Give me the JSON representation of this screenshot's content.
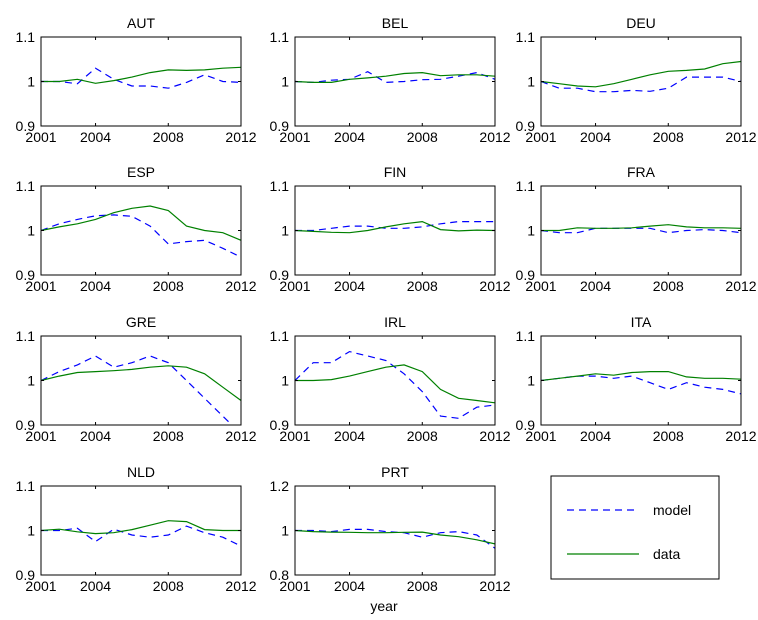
{
  "figure": {
    "xlabel": "year",
    "legend": {
      "position": "bottom-right",
      "entries": [
        {
          "label": "model",
          "style": "dashed",
          "color": "#0000ff"
        },
        {
          "label": "data",
          "style": "solid",
          "color": "#008000"
        }
      ]
    },
    "colors": {
      "model": "#0000ff",
      "data": "#008000",
      "axes": "#000000"
    }
  },
  "chart_data": [
    {
      "type": "line",
      "title": "AUT",
      "xlim": [
        2001,
        2012
      ],
      "ylim": [
        0.9,
        1.1
      ],
      "xticks": [
        "2001",
        "2004",
        "2008",
        "2012"
      ],
      "yticks": [
        "0.9",
        "1",
        "1.1"
      ],
      "x": [
        2001,
        2002,
        2003,
        2004,
        2005,
        2006,
        2007,
        2008,
        2009,
        2010,
        2011,
        2012
      ],
      "series": [
        {
          "name": "model",
          "values": [
            1.0,
            1.0,
            0.995,
            1.03,
            1.005,
            0.99,
            0.99,
            0.985,
            0.998,
            1.015,
            1.0,
            0.998
          ]
        },
        {
          "name": "data",
          "values": [
            1.0,
            1.0,
            1.005,
            0.996,
            1.002,
            1.01,
            1.02,
            1.026,
            1.025,
            1.026,
            1.03,
            1.032
          ]
        }
      ]
    },
    {
      "type": "line",
      "title": "BEL",
      "xlim": [
        2001,
        2012
      ],
      "ylim": [
        0.9,
        1.1
      ],
      "xticks": [
        "2001",
        "2004",
        "2008",
        "2012"
      ],
      "yticks": [
        "0.9",
        "1",
        "1.1"
      ],
      "x": [
        2001,
        2002,
        2003,
        2004,
        2005,
        2006,
        2007,
        2008,
        2009,
        2010,
        2011,
        2012
      ],
      "series": [
        {
          "name": "model",
          "values": [
            1.0,
            0.998,
            1.003,
            1.005,
            1.022,
            0.998,
            1.0,
            1.004,
            1.005,
            1.012,
            1.02,
            1.005
          ]
        },
        {
          "name": "data",
          "values": [
            1.0,
            0.998,
            0.998,
            1.005,
            1.008,
            1.012,
            1.018,
            1.02,
            1.013,
            1.015,
            1.015,
            1.012
          ]
        }
      ]
    },
    {
      "type": "line",
      "title": "DEU",
      "xlim": [
        2001,
        2012
      ],
      "ylim": [
        0.9,
        1.1
      ],
      "xticks": [
        "2001",
        "2004",
        "2008",
        "2012"
      ],
      "yticks": [
        "0.9",
        "1",
        "1.1"
      ],
      "x": [
        2001,
        2002,
        2003,
        2004,
        2005,
        2006,
        2007,
        2008,
        2009,
        2010,
        2011,
        2012
      ],
      "series": [
        {
          "name": "model",
          "values": [
            1.0,
            0.985,
            0.985,
            0.977,
            0.977,
            0.98,
            0.978,
            0.985,
            1.01,
            1.01,
            1.01,
            1.0
          ]
        },
        {
          "name": "data",
          "values": [
            1.0,
            0.995,
            0.99,
            0.988,
            0.995,
            1.005,
            1.015,
            1.023,
            1.025,
            1.028,
            1.04,
            1.045
          ]
        }
      ]
    },
    {
      "type": "line",
      "title": "ESP",
      "xlim": [
        2001,
        2012
      ],
      "ylim": [
        0.9,
        1.1
      ],
      "xticks": [
        "2001",
        "2004",
        "2008",
        "2012"
      ],
      "yticks": [
        "0.9",
        "1",
        "1.1"
      ],
      "x": [
        2001,
        2002,
        2003,
        2004,
        2005,
        2006,
        2007,
        2008,
        2009,
        2010,
        2011,
        2012
      ],
      "series": [
        {
          "name": "model",
          "values": [
            1.0,
            1.015,
            1.025,
            1.033,
            1.035,
            1.032,
            1.01,
            0.97,
            0.975,
            0.978,
            0.96,
            0.94
          ]
        },
        {
          "name": "data",
          "values": [
            1.0,
            1.008,
            1.015,
            1.025,
            1.04,
            1.05,
            1.055,
            1.045,
            1.01,
            1.0,
            0.995,
            0.978
          ]
        }
      ]
    },
    {
      "type": "line",
      "title": "FIN",
      "xlim": [
        2001,
        2012
      ],
      "ylim": [
        0.9,
        1.1
      ],
      "xticks": [
        "2001",
        "2004",
        "2008",
        "2012"
      ],
      "yticks": [
        "0.9",
        "1",
        "1.1"
      ],
      "x": [
        2001,
        2002,
        2003,
        2004,
        2005,
        2006,
        2007,
        2008,
        2009,
        2010,
        2011,
        2012
      ],
      "series": [
        {
          "name": "model",
          "values": [
            1.0,
            1.0,
            1.005,
            1.01,
            1.01,
            1.005,
            1.005,
            1.008,
            1.015,
            1.02,
            1.02,
            1.02
          ]
        },
        {
          "name": "data",
          "values": [
            1.0,
            0.998,
            0.996,
            0.995,
            1.0,
            1.008,
            1.015,
            1.02,
            1.002,
            0.999,
            1.001,
            1.0
          ]
        }
      ]
    },
    {
      "type": "line",
      "title": "FRA",
      "xlim": [
        2001,
        2012
      ],
      "ylim": [
        0.9,
        1.1
      ],
      "xticks": [
        "2001",
        "2004",
        "2008",
        "2012"
      ],
      "yticks": [
        "0.9",
        "1",
        "1.1"
      ],
      "x": [
        2001,
        2002,
        2003,
        2004,
        2005,
        2006,
        2007,
        2008,
        2009,
        2010,
        2011,
        2012
      ],
      "series": [
        {
          "name": "model",
          "values": [
            1.0,
            0.995,
            0.995,
            1.005,
            1.005,
            1.005,
            1.005,
            0.995,
            1.0,
            1.002,
            1.0,
            0.995
          ]
        },
        {
          "name": "data",
          "values": [
            1.0,
            1.0,
            1.006,
            1.005,
            1.005,
            1.006,
            1.01,
            1.013,
            1.008,
            1.006,
            1.006,
            1.005
          ]
        }
      ]
    },
    {
      "type": "line",
      "title": "GRE",
      "xlim": [
        2001,
        2012
      ],
      "ylim": [
        0.9,
        1.1
      ],
      "xticks": [
        "2001",
        "2004",
        "2008",
        "2012"
      ],
      "yticks": [
        "0.9",
        "1",
        "1.1"
      ],
      "x": [
        2001,
        2002,
        2003,
        2004,
        2005,
        2006,
        2007,
        2008,
        2009,
        2010,
        2011,
        2012
      ],
      "series": [
        {
          "name": "model",
          "values": [
            1.0,
            1.02,
            1.035,
            1.055,
            1.03,
            1.04,
            1.055,
            1.04,
            1.0,
            0.96,
            0.92,
            0.88
          ]
        },
        {
          "name": "data",
          "values": [
            1.0,
            1.01,
            1.018,
            1.02,
            1.022,
            1.025,
            1.03,
            1.033,
            1.03,
            1.015,
            0.985,
            0.955
          ]
        }
      ]
    },
    {
      "type": "line",
      "title": "IRL",
      "xlim": [
        2001,
        2012
      ],
      "ylim": [
        0.9,
        1.1
      ],
      "xticks": [
        "2001",
        "2004",
        "2008",
        "2012"
      ],
      "yticks": [
        "0.9",
        "1",
        "1.1"
      ],
      "x": [
        2001,
        2002,
        2003,
        2004,
        2005,
        2006,
        2007,
        2008,
        2009,
        2010,
        2011,
        2012
      ],
      "series": [
        {
          "name": "model",
          "values": [
            1.0,
            1.04,
            1.04,
            1.065,
            1.055,
            1.045,
            1.015,
            0.975,
            0.92,
            0.915,
            0.94,
            0.945
          ]
        },
        {
          "name": "data",
          "values": [
            1.0,
            1.0,
            1.002,
            1.01,
            1.02,
            1.03,
            1.035,
            1.02,
            0.98,
            0.96,
            0.955,
            0.95
          ]
        }
      ]
    },
    {
      "type": "line",
      "title": "ITA",
      "xlim": [
        2001,
        2012
      ],
      "ylim": [
        0.9,
        1.1
      ],
      "xticks": [
        "2001",
        "2004",
        "2008",
        "2012"
      ],
      "yticks": [
        "0.9",
        "1",
        "1.1"
      ],
      "x": [
        2001,
        2002,
        2003,
        2004,
        2005,
        2006,
        2007,
        2008,
        2009,
        2010,
        2011,
        2012
      ],
      "series": [
        {
          "name": "model",
          "values": [
            1.0,
            1.005,
            1.01,
            1.01,
            1.005,
            1.01,
            0.995,
            0.98,
            0.995,
            0.985,
            0.98,
            0.97
          ]
        },
        {
          "name": "data",
          "values": [
            1.0,
            1.005,
            1.01,
            1.015,
            1.012,
            1.018,
            1.02,
            1.02,
            1.008,
            1.005,
            1.005,
            1.003
          ]
        }
      ]
    },
    {
      "type": "line",
      "title": "NLD",
      "xlim": [
        2001,
        2012
      ],
      "ylim": [
        0.9,
        1.1
      ],
      "xticks": [
        "2001",
        "2004",
        "2008",
        "2012"
      ],
      "yticks": [
        "0.9",
        "1",
        "1.1"
      ],
      "x": [
        2001,
        2002,
        2003,
        2004,
        2005,
        2006,
        2007,
        2008,
        2009,
        2010,
        2011,
        2012
      ],
      "series": [
        {
          "name": "model",
          "values": [
            1.0,
            1.0,
            1.005,
            0.975,
            1.003,
            0.99,
            0.985,
            0.99,
            1.01,
            0.995,
            0.985,
            0.965
          ]
        },
        {
          "name": "data",
          "values": [
            1.0,
            1.003,
            0.997,
            0.993,
            0.995,
            1.002,
            1.012,
            1.022,
            1.02,
            1.002,
            1.0,
            1.0
          ]
        }
      ]
    },
    {
      "type": "line",
      "title": "PRT",
      "xlim": [
        2001,
        2012
      ],
      "ylim": [
        0.8,
        1.2
      ],
      "xticks": [
        "2001",
        "2004",
        "2008",
        "2012"
      ],
      "yticks": [
        "0.8",
        "1",
        "1.2"
      ],
      "x": [
        2001,
        2002,
        2003,
        2004,
        2005,
        2006,
        2007,
        2008,
        2009,
        2010,
        2011,
        2012
      ],
      "series": [
        {
          "name": "model",
          "values": [
            1.0,
            1.0,
            0.995,
            1.005,
            1.005,
            0.995,
            0.99,
            0.97,
            0.99,
            0.995,
            0.98,
            0.92
          ]
        },
        {
          "name": "data",
          "values": [
            1.0,
            0.995,
            0.993,
            0.992,
            0.99,
            0.99,
            0.992,
            0.993,
            0.98,
            0.972,
            0.958,
            0.94
          ]
        }
      ]
    }
  ]
}
